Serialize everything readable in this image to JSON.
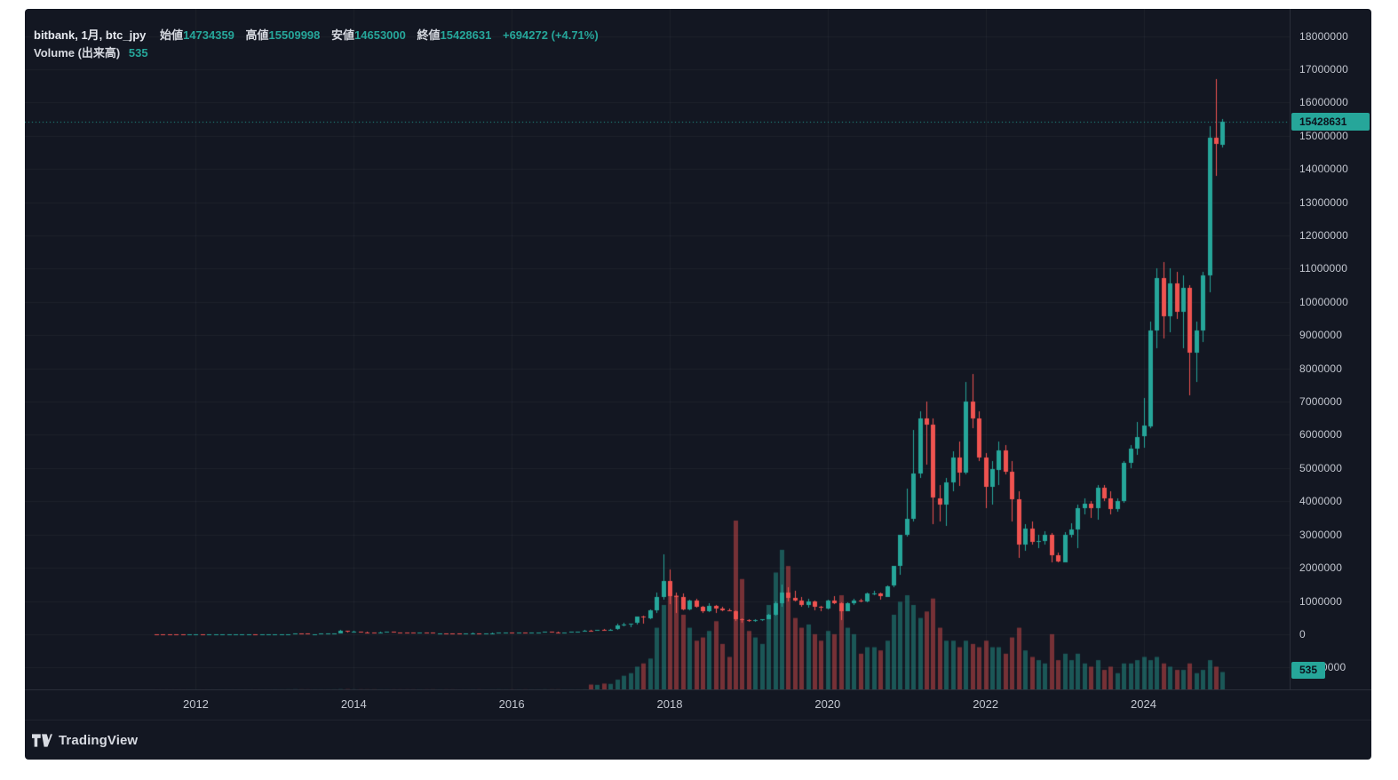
{
  "colors": {
    "up": "#26a69a",
    "down": "#ef5350",
    "accent": "#26a69a",
    "background": "#131722",
    "panel_border": "#2a2e39",
    "axis_text": "#c3c7d0",
    "volume_up": "rgba(38,166,154,0.45)",
    "volume_down": "rgba(239,83,80,0.45)"
  },
  "legend": {
    "title": "bitbank, 1月, btc_jpy",
    "ohlc": [
      {
        "label": "始値",
        "value": "14734359"
      },
      {
        "label": "高値",
        "value": "15509998"
      },
      {
        "label": "安値",
        "value": "14653000"
      },
      {
        "label": "終値",
        "value": "15428631"
      }
    ],
    "change": "+694272 (+4.71%)",
    "volume": {
      "label": "Volume (出来高)",
      "value": "535"
    }
  },
  "price_axis": {
    "ticks": [
      18000000,
      17000000,
      16000000,
      15000000,
      14000000,
      13000000,
      12000000,
      11000000,
      10000000,
      9000000,
      8000000,
      7000000,
      6000000,
      5000000,
      4000000,
      3000000,
      2000000,
      1000000,
      0,
      -1000000
    ],
    "last_price_label": "15428631",
    "last_volume_label": "535"
  },
  "time_axis": {
    "years": [
      "2012",
      "2014",
      "2016",
      "2018",
      "2020",
      "2022",
      "2024"
    ]
  },
  "footer": {
    "brand": "TradingView"
  },
  "chart_data": {
    "type": "candlestick",
    "exchange": "bitbank",
    "symbol": "btc_jpy",
    "interval": "1月",
    "title": "bitbank, 1月, btc_jpy",
    "ylim": [
      -1660000,
      18820000
    ],
    "price_line": 15428631,
    "last": {
      "open": 14734359,
      "high": 15509998,
      "low": 14653000,
      "close": 15428631,
      "change": 694272,
      "change_pct": 4.71,
      "volume": 535
    },
    "columns": [
      "month",
      "open",
      "high",
      "low",
      "close",
      "volume"
    ],
    "candles": [
      [
        "2011-07",
        1200,
        1400,
        900,
        1100,
        1
      ],
      [
        "2011-08",
        1100,
        1200,
        700,
        900,
        1
      ],
      [
        "2011-09",
        900,
        950,
        450,
        600,
        1
      ],
      [
        "2011-10",
        600,
        620,
        250,
        350,
        1
      ],
      [
        "2011-11",
        350,
        380,
        180,
        250,
        1
      ],
      [
        "2011-12",
        250,
        400,
        200,
        350,
        1
      ],
      [
        "2012-01",
        350,
        560,
        300,
        420,
        1
      ],
      [
        "2012-02",
        420,
        450,
        320,
        380,
        1
      ],
      [
        "2012-03",
        380,
        440,
        350,
        390,
        1
      ],
      [
        "2012-04",
        390,
        450,
        360,
        400,
        1
      ],
      [
        "2012-05",
        400,
        430,
        380,
        410,
        1
      ],
      [
        "2012-06",
        410,
        560,
        400,
        530,
        1
      ],
      [
        "2012-07",
        530,
        800,
        500,
        760,
        1
      ],
      [
        "2012-08",
        760,
        1300,
        700,
        800,
        1
      ],
      [
        "2012-09",
        800,
        1050,
        780,
        990,
        1
      ],
      [
        "2012-10",
        990,
        1050,
        820,
        880,
        1
      ],
      [
        "2012-11",
        880,
        1060,
        850,
        1020,
        1
      ],
      [
        "2012-12",
        1020,
        1150,
        980,
        1100,
        1
      ],
      [
        "2013-01",
        1100,
        1700,
        1050,
        1600,
        2
      ],
      [
        "2013-02",
        1600,
        3200,
        1550,
        3000,
        2
      ],
      [
        "2013-03",
        3000,
        8900,
        2900,
        8800,
        3
      ],
      [
        "2013-04",
        8800,
        25000,
        5000,
        13000,
        5
      ],
      [
        "2013-05",
        13000,
        14000,
        8000,
        12500,
        3
      ],
      [
        "2013-06",
        12500,
        13000,
        8800,
        9500,
        2
      ],
      [
        "2013-07",
        9500,
        10500,
        6500,
        9800,
        2
      ],
      [
        "2013-08",
        9800,
        13500,
        9200,
        13000,
        2
      ],
      [
        "2013-09",
        13000,
        14500,
        11500,
        13500,
        2
      ],
      [
        "2013-10",
        13500,
        21000,
        12500,
        20000,
        3
      ],
      [
        "2013-11",
        20000,
        121000,
        19500,
        110000,
        8
      ],
      [
        "2013-12",
        110000,
        115000,
        50000,
        75000,
        7
      ],
      [
        "2014-01",
        75000,
        102000,
        70000,
        82000,
        4
      ],
      [
        "2014-02",
        82000,
        85000,
        40000,
        58000,
        4
      ],
      [
        "2014-03",
        58000,
        70000,
        44000,
        46000,
        3
      ],
      [
        "2014-04",
        46000,
        55000,
        36000,
        45000,
        3
      ],
      [
        "2014-05",
        45000,
        65000,
        43000,
        63000,
        2
      ],
      [
        "2014-06",
        63000,
        68000,
        55000,
        65000,
        2
      ],
      [
        "2014-07",
        65000,
        66000,
        58000,
        60000,
        2
      ],
      [
        "2014-08",
        60000,
        62000,
        46000,
        52000,
        2
      ],
      [
        "2014-09",
        52000,
        53000,
        41000,
        42000,
        2
      ],
      [
        "2014-10",
        42000,
        43000,
        31000,
        36000,
        2
      ],
      [
        "2014-11",
        36000,
        46000,
        35000,
        43000,
        2
      ],
      [
        "2014-12",
        43000,
        44000,
        36000,
        38000,
        2
      ],
      [
        "2015-01",
        38000,
        39000,
        20000,
        26000,
        3
      ],
      [
        "2015-02",
        26000,
        31000,
        25000,
        30000,
        2
      ],
      [
        "2015-03",
        30000,
        35000,
        28000,
        29000,
        2
      ],
      [
        "2015-04",
        29000,
        31000,
        26000,
        28000,
        2
      ],
      [
        "2015-05",
        28000,
        29500,
        27000,
        27500,
        1
      ],
      [
        "2015-06",
        27500,
        33000,
        27000,
        32000,
        1
      ],
      [
        "2015-07",
        32000,
        38000,
        31000,
        35000,
        2
      ],
      [
        "2015-08",
        35000,
        36000,
        24000,
        28000,
        2
      ],
      [
        "2015-09",
        28000,
        30000,
        27000,
        29000,
        1
      ],
      [
        "2015-10",
        29000,
        40000,
        28500,
        37000,
        2
      ],
      [
        "2015-11",
        37000,
        60000,
        36000,
        46000,
        3
      ],
      [
        "2015-12",
        46000,
        56000,
        42000,
        52000,
        2
      ],
      [
        "2016-01",
        52000,
        53000,
        42000,
        45000,
        2
      ],
      [
        "2016-02",
        45000,
        50000,
        43000,
        49000,
        2
      ],
      [
        "2016-03",
        49000,
        50000,
        44000,
        47000,
        2
      ],
      [
        "2016-04",
        47000,
        52000,
        45000,
        48000,
        2
      ],
      [
        "2016-05",
        48000,
        59000,
        47000,
        57000,
        2
      ],
      [
        "2016-06",
        57000,
        80000,
        56000,
        69000,
        4
      ],
      [
        "2016-07",
        69000,
        72000,
        60000,
        64000,
        3
      ],
      [
        "2016-08",
        64000,
        66000,
        50000,
        59000,
        3
      ],
      [
        "2016-09",
        59000,
        63000,
        58000,
        62000,
        2
      ],
      [
        "2016-10",
        62000,
        73000,
        61000,
        72000,
        2
      ],
      [
        "2016-11",
        72000,
        78000,
        68000,
        77000,
        2
      ],
      [
        "2016-12",
        77000,
        122000,
        76000,
        116000,
        4
      ],
      [
        "2017-01",
        116000,
        140000,
        85000,
        112000,
        150
      ],
      [
        "2017-02",
        112000,
        137000,
        108000,
        135000,
        140
      ],
      [
        "2017-03",
        135000,
        147000,
        105000,
        121000,
        180
      ],
      [
        "2017-04",
        121000,
        145000,
        115000,
        143000,
        170
      ],
      [
        "2017-05",
        143000,
        310000,
        140000,
        260000,
        300
      ],
      [
        "2017-06",
        260000,
        340000,
        245000,
        280000,
        420
      ],
      [
        "2017-07",
        280000,
        330000,
        210000,
        320000,
        500
      ],
      [
        "2017-08",
        320000,
        530000,
        300000,
        520000,
        700
      ],
      [
        "2017-09",
        520000,
        560000,
        330000,
        480000,
        800
      ],
      [
        "2017-10",
        480000,
        740000,
        460000,
        730000,
        950
      ],
      [
        "2017-11",
        730000,
        1250000,
        650000,
        1120000,
        1900
      ],
      [
        "2017-12",
        1120000,
        2400000,
        1050000,
        1600000,
        2600
      ],
      [
        "2018-01",
        1600000,
        1950000,
        900000,
        1150000,
        3100
      ],
      [
        "2018-02",
        1150000,
        1250000,
        650000,
        1120000,
        2900
      ],
      [
        "2018-03",
        1120000,
        1230000,
        730000,
        750000,
        2300
      ],
      [
        "2018-04",
        750000,
        1050000,
        710000,
        1020000,
        1900
      ],
      [
        "2018-05",
        1020000,
        1080000,
        790000,
        830000,
        1500
      ],
      [
        "2018-06",
        830000,
        850000,
        640000,
        700000,
        1600
      ],
      [
        "2018-07",
        700000,
        930000,
        670000,
        860000,
        1800
      ],
      [
        "2018-08",
        860000,
        870000,
        650000,
        780000,
        2100
      ],
      [
        "2018-09",
        780000,
        820000,
        690000,
        730000,
        1400
      ],
      [
        "2018-10",
        730000,
        760000,
        690000,
        700000,
        1000
      ],
      [
        "2018-11",
        700000,
        720000,
        390000,
        450000,
        5200
      ],
      [
        "2018-12",
        450000,
        480000,
        350000,
        420000,
        3400
      ],
      [
        "2019-01",
        420000,
        440000,
        370000,
        380000,
        1800
      ],
      [
        "2019-02",
        380000,
        460000,
        370000,
        420000,
        1600
      ],
      [
        "2019-03",
        420000,
        460000,
        400000,
        450000,
        1400
      ],
      [
        "2019-04",
        450000,
        620000,
        440000,
        580000,
        2600
      ],
      [
        "2019-05",
        580000,
        980000,
        570000,
        940000,
        3600
      ],
      [
        "2019-06",
        940000,
        1500000,
        830000,
        1250000,
        4300
      ],
      [
        "2019-07",
        1250000,
        1420000,
        980000,
        1090000,
        3800
      ],
      [
        "2019-08",
        1090000,
        1300000,
        990000,
        1020000,
        2200
      ],
      [
        "2019-09",
        1020000,
        1130000,
        820000,
        880000,
        1900
      ],
      [
        "2019-10",
        880000,
        1080000,
        790000,
        990000,
        2000
      ],
      [
        "2019-11",
        990000,
        1020000,
        730000,
        830000,
        1700
      ],
      [
        "2019-12",
        830000,
        840000,
        700000,
        790000,
        1500
      ],
      [
        "2020-01",
        790000,
        1030000,
        750000,
        1020000,
        1800
      ],
      [
        "2020-02",
        1020000,
        1150000,
        900000,
        930000,
        1700
      ],
      [
        "2020-03",
        930000,
        950000,
        430000,
        700000,
        2900
      ],
      [
        "2020-04",
        700000,
        950000,
        680000,
        940000,
        1900
      ],
      [
        "2020-05",
        940000,
        1060000,
        870000,
        1020000,
        1700
      ],
      [
        "2020-06",
        1020000,
        1070000,
        950000,
        980000,
        1100
      ],
      [
        "2020-07",
        980000,
        1250000,
        960000,
        1220000,
        1300
      ],
      [
        "2020-08",
        1220000,
        1310000,
        1180000,
        1230000,
        1300
      ],
      [
        "2020-09",
        1230000,
        1260000,
        1040000,
        1140000,
        1200
      ],
      [
        "2020-10",
        1140000,
        1460000,
        1110000,
        1450000,
        1500
      ],
      [
        "2020-11",
        1450000,
        2060000,
        1420000,
        2050000,
        2300
      ],
      [
        "2020-12",
        2050000,
        3000000,
        1790000,
        2980000,
        2700
      ],
      [
        "2021-01",
        2980000,
        4380000,
        2940000,
        3470000,
        2900
      ],
      [
        "2021-02",
        3470000,
        6150000,
        3400000,
        4830000,
        2600
      ],
      [
        "2021-03",
        4830000,
        6700000,
        4700000,
        6490000,
        2200
      ],
      [
        "2021-04",
        6490000,
        7000000,
        5100000,
        6300000,
        2400
      ],
      [
        "2021-05",
        6300000,
        6500000,
        3300000,
        4100000,
        2800
      ],
      [
        "2021-06",
        4100000,
        4500000,
        3400000,
        3900000,
        1900
      ],
      [
        "2021-07",
        3900000,
        4700000,
        3250000,
        4580000,
        1500
      ],
      [
        "2021-08",
        4580000,
        5500000,
        4300000,
        5330000,
        1500
      ],
      [
        "2021-09",
        5330000,
        5800000,
        4450000,
        4870000,
        1300
      ],
      [
        "2021-10",
        4870000,
        7600000,
        4800000,
        7000000,
        1500
      ],
      [
        "2021-11",
        7000000,
        7830000,
        6200000,
        6490000,
        1400
      ],
      [
        "2021-12",
        6490000,
        6700000,
        5200000,
        5310000,
        1300
      ],
      [
        "2022-01",
        5310000,
        5450000,
        3800000,
        4430000,
        1500
      ],
      [
        "2022-02",
        4430000,
        5200000,
        3900000,
        4960000,
        1300
      ],
      [
        "2022-03",
        4960000,
        5800000,
        4500000,
        5540000,
        1300
      ],
      [
        "2022-04",
        5540000,
        5700000,
        4800000,
        4900000,
        1100
      ],
      [
        "2022-05",
        4900000,
        5200000,
        3400000,
        4060000,
        1600
      ],
      [
        "2022-06",
        4060000,
        4300000,
        2300000,
        2700000,
        1900
      ],
      [
        "2022-07",
        2700000,
        3300000,
        2500000,
        3180000,
        1200
      ],
      [
        "2022-08",
        3180000,
        3400000,
        2700000,
        2790000,
        1000
      ],
      [
        "2022-09",
        2790000,
        3000000,
        2600000,
        2800000,
        900
      ],
      [
        "2022-10",
        2800000,
        3100000,
        2700000,
        2990000,
        800
      ],
      [
        "2022-11",
        2990000,
        3050000,
        2150000,
        2380000,
        1700
      ],
      [
        "2022-12",
        2380000,
        2450000,
        2160000,
        2180000,
        900
      ],
      [
        "2023-01",
        2180000,
        3080000,
        2150000,
        3000000,
        1100
      ],
      [
        "2023-02",
        3000000,
        3350000,
        2900000,
        3160000,
        900
      ],
      [
        "2023-03",
        3160000,
        3900000,
        2600000,
        3790000,
        1100
      ],
      [
        "2023-04",
        3790000,
        4100000,
        3600000,
        3920000,
        800
      ],
      [
        "2023-05",
        3920000,
        4000000,
        3500000,
        3780000,
        700
      ],
      [
        "2023-06",
        3780000,
        4500000,
        3450000,
        4400000,
        900
      ],
      [
        "2023-07",
        4400000,
        4480000,
        4000000,
        4090000,
        600
      ],
      [
        "2023-08",
        4090000,
        4300000,
        3600000,
        3780000,
        700
      ],
      [
        "2023-09",
        3780000,
        4100000,
        3700000,
        4020000,
        500
      ],
      [
        "2023-10",
        4020000,
        5200000,
        3950000,
        5170000,
        800
      ],
      [
        "2023-11",
        5170000,
        5700000,
        5000000,
        5590000,
        800
      ],
      [
        "2023-12",
        5590000,
        6400000,
        5400000,
        5940000,
        900
      ],
      [
        "2024-01",
        5940000,
        7100000,
        5600000,
        6270000,
        1000
      ],
      [
        "2024-02",
        6270000,
        9400000,
        6200000,
        9150000,
        900
      ],
      [
        "2024-03",
        9150000,
        11000000,
        8600000,
        10720000,
        1000
      ],
      [
        "2024-04",
        10720000,
        11200000,
        8900000,
        9570000,
        800
      ],
      [
        "2024-05",
        9570000,
        11000000,
        9100000,
        10560000,
        700
      ],
      [
        "2024-06",
        10560000,
        10900000,
        9500000,
        9700000,
        600
      ],
      [
        "2024-07",
        9700000,
        10800000,
        8600000,
        10420000,
        600
      ],
      [
        "2024-08",
        10420000,
        10500000,
        7200000,
        8460000,
        800
      ],
      [
        "2024-09",
        8460000,
        9400000,
        7600000,
        9130000,
        500
      ],
      [
        "2024-10",
        9130000,
        10900000,
        8800000,
        10790000,
        600
      ],
      [
        "2024-11",
        10790000,
        15300000,
        10300000,
        14930000,
        900
      ],
      [
        "2024-12",
        14930000,
        16700000,
        13800000,
        14734359,
        700
      ],
      [
        "2025-01",
        14734359,
        15509998,
        14653000,
        15428631,
        535
      ]
    ]
  }
}
